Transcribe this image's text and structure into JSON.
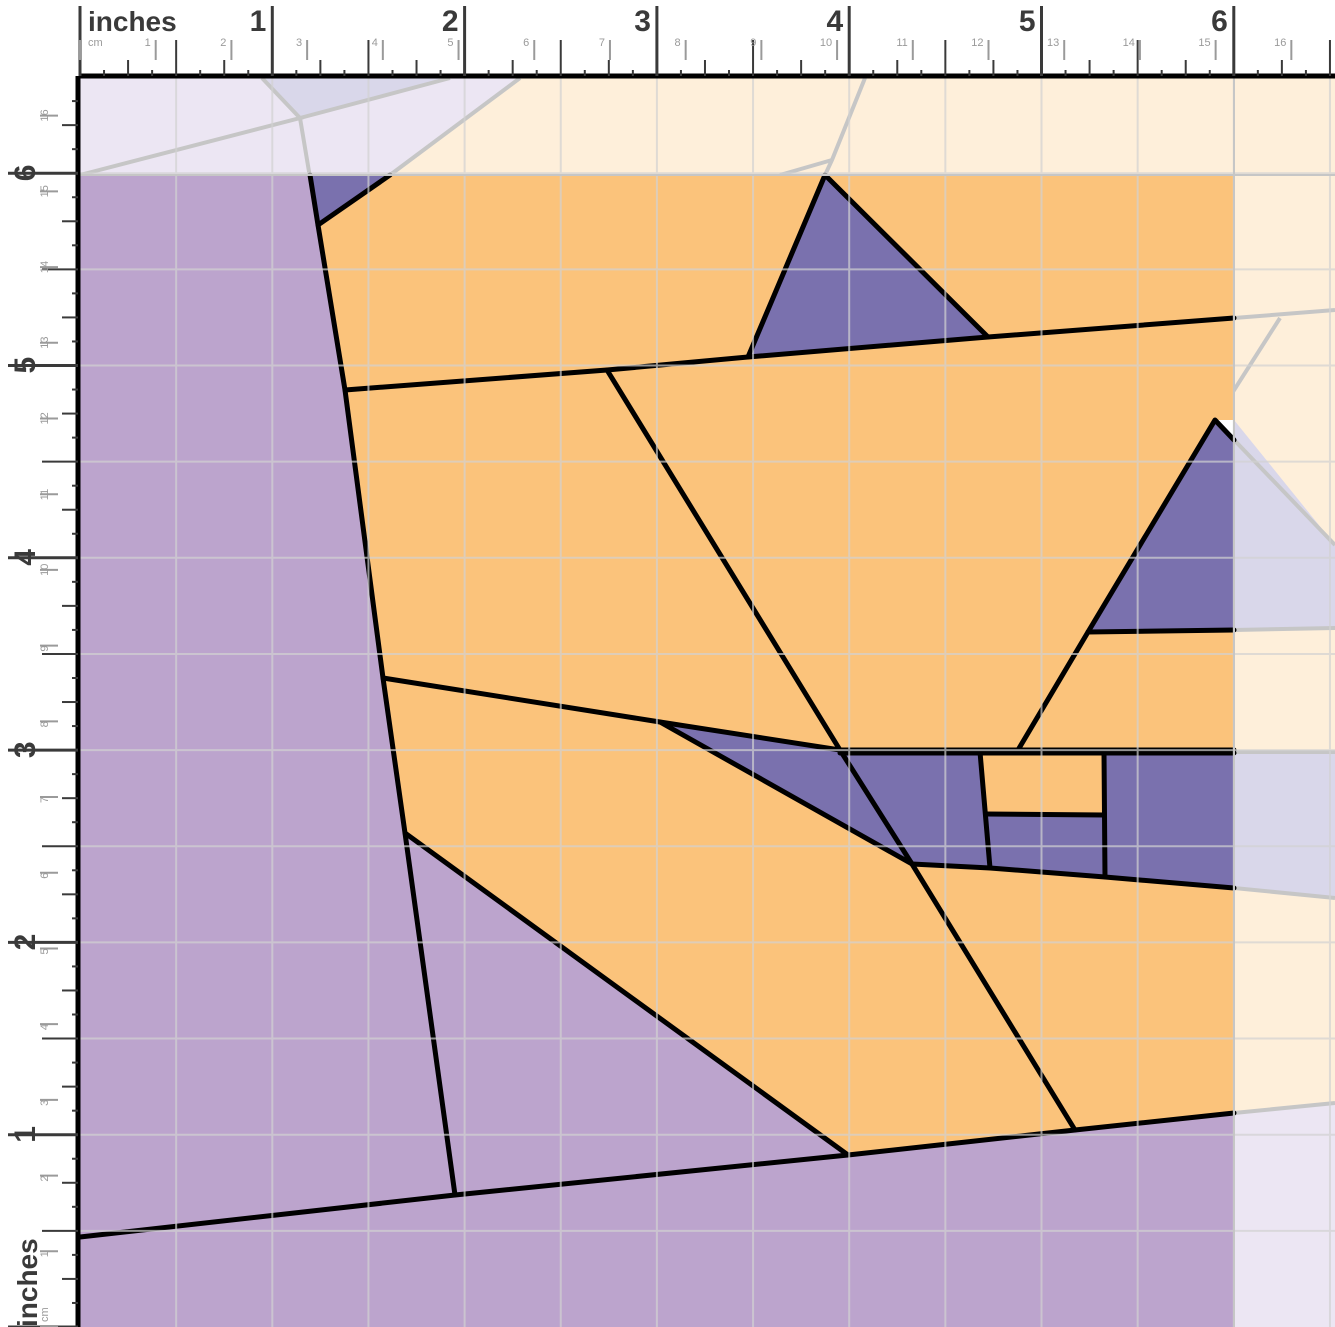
{
  "ruler": {
    "unit_label": "inches",
    "sub_unit_label": "cm",
    "top_inch_labels": [
      "1",
      "2",
      "3",
      "4",
      "5",
      "6"
    ],
    "top_cm_labels": [
      "1",
      "2",
      "3",
      "4",
      "5",
      "6",
      "7",
      "8",
      "9",
      "10",
      "11",
      "12",
      "13",
      "14",
      "15",
      "16"
    ],
    "left_inch_labels": [
      "1",
      "2",
      "3",
      "4",
      "5",
      "6"
    ],
    "left_cm_labels": [
      "1",
      "2",
      "3",
      "4",
      "5",
      "6",
      "7",
      "8",
      "9",
      "10",
      "11",
      "12",
      "13",
      "14",
      "15",
      "16"
    ]
  },
  "pattern": {
    "colors": {
      "light_purple": "#bca4cd",
      "dark_purple": "#7a71ae",
      "orange": "#fbc37b",
      "faded_purple": "#ece6f3",
      "faded_dark_purple": "#d9d7ea",
      "faded_orange": "#feefda",
      "outline": "#000000",
      "faded_outline": "#c6c6c6",
      "grid": "#d2d2d2"
    },
    "block_size_inches": 6
  }
}
